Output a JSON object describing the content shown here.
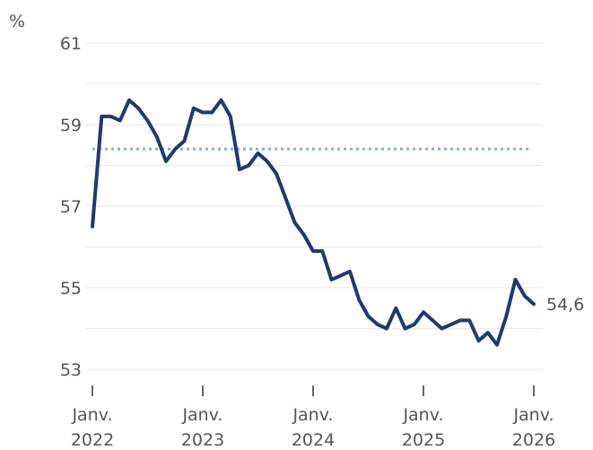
{
  "chart_data": {
    "type": "line",
    "unit_label": "%",
    "y_ticks": [
      53,
      55,
      57,
      59,
      61
    ],
    "y_tick_labels": [
      "53",
      "55",
      "57",
      "59",
      "61"
    ],
    "ylim": [
      52.5,
      61.5
    ],
    "x_ticks": [
      {
        "label_line1": "Janv.",
        "label_line2": "2022",
        "x": "2022-01"
      },
      {
        "label_line1": "Janv.",
        "label_line2": "2023",
        "x": "2023-01"
      },
      {
        "label_line1": "Janv.",
        "label_line2": "2024",
        "x": "2024-01"
      },
      {
        "label_line1": "Janv.",
        "label_line2": "2025",
        "x": "2025-01"
      },
      {
        "label_line1": "Janv.",
        "label_line2": "2026",
        "x": "2026-01"
      }
    ],
    "grid": true,
    "reference_line": {
      "value": 58.4,
      "style": "dotted",
      "color": "#8aa9e6"
    },
    "series": [
      {
        "color": "#1f3a6e",
        "end_label": "54,6",
        "points": [
          [
            "2022-01",
            56.5
          ],
          [
            "2022-02",
            59.2
          ],
          [
            "2022-03",
            59.2
          ],
          [
            "2022-04",
            59.1
          ],
          [
            "2022-05",
            59.6
          ],
          [
            "2022-06",
            59.4
          ],
          [
            "2022-07",
            59.1
          ],
          [
            "2022-08",
            58.7
          ],
          [
            "2022-09",
            58.1
          ],
          [
            "2022-10",
            58.4
          ],
          [
            "2022-11",
            58.6
          ],
          [
            "2022-12",
            59.4
          ],
          [
            "2023-01",
            59.3
          ],
          [
            "2023-02",
            59.3
          ],
          [
            "2023-03",
            59.6
          ],
          [
            "2023-04",
            59.2
          ],
          [
            "2023-05",
            57.9
          ],
          [
            "2023-06",
            58.0
          ],
          [
            "2023-07",
            58.3
          ],
          [
            "2023-08",
            58.1
          ],
          [
            "2023-09",
            57.8
          ],
          [
            "2023-10",
            57.2
          ],
          [
            "2023-11",
            56.6
          ],
          [
            "2023-12",
            56.3
          ],
          [
            "2024-01",
            55.9
          ],
          [
            "2024-02",
            55.9
          ],
          [
            "2024-03",
            55.2
          ],
          [
            "2024-04",
            55.3
          ],
          [
            "2024-05",
            55.4
          ],
          [
            "2024-06",
            54.7
          ],
          [
            "2024-07",
            54.3
          ],
          [
            "2024-08",
            54.1
          ],
          [
            "2024-09",
            54.0
          ],
          [
            "2024-10",
            54.5
          ],
          [
            "2024-11",
            54.0
          ],
          [
            "2024-12",
            54.1
          ],
          [
            "2025-01",
            54.4
          ],
          [
            "2025-02",
            54.2
          ],
          [
            "2025-03",
            54.0
          ],
          [
            "2025-04",
            54.1
          ],
          [
            "2025-05",
            54.2
          ],
          [
            "2025-06",
            54.2
          ],
          [
            "2025-07",
            53.7
          ],
          [
            "2025-08",
            53.9
          ],
          [
            "2025-09",
            53.6
          ],
          [
            "2025-10",
            54.3
          ],
          [
            "2025-11",
            55.2
          ],
          [
            "2025-12",
            54.8
          ],
          [
            "2026-01",
            54.6
          ]
        ]
      }
    ]
  }
}
